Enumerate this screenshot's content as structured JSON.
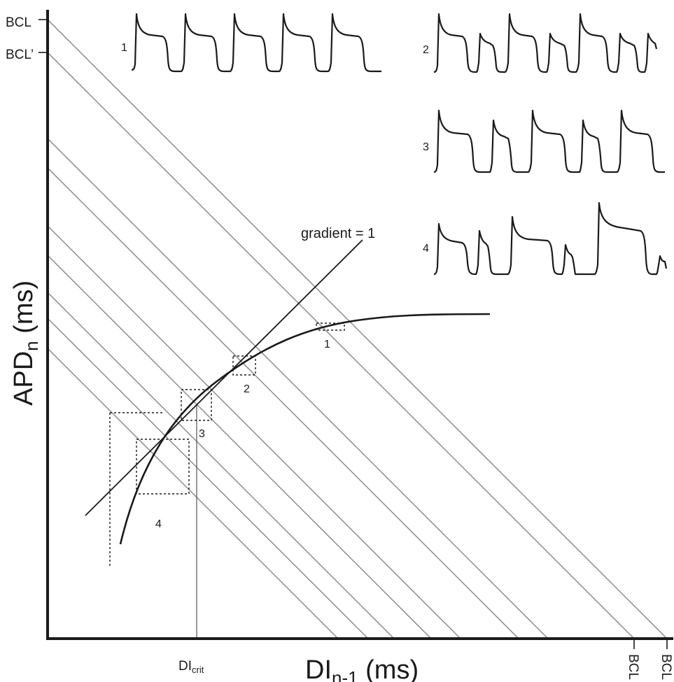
{
  "axes": {
    "ylabel_main": "APD",
    "ylabel_sub": "n",
    "ylabel_unit": " (ms)",
    "xlabel_main": "DI",
    "xlabel_sub": "n-1",
    "xlabel_unit": " (ms)"
  },
  "y_ticks": {
    "bcl": "BCL",
    "bcl_prime": "BCL’"
  },
  "x_ticks": {
    "bcl": "BCL",
    "bcl_prime": "BCL"
  },
  "di_crit": {
    "main": "DI",
    "sub": "crit"
  },
  "gradient_label": "gradient = 1",
  "box_labels": [
    "1",
    "2",
    "3",
    "4"
  ],
  "trace_labels": [
    "1",
    "2",
    "3",
    "4"
  ]
}
